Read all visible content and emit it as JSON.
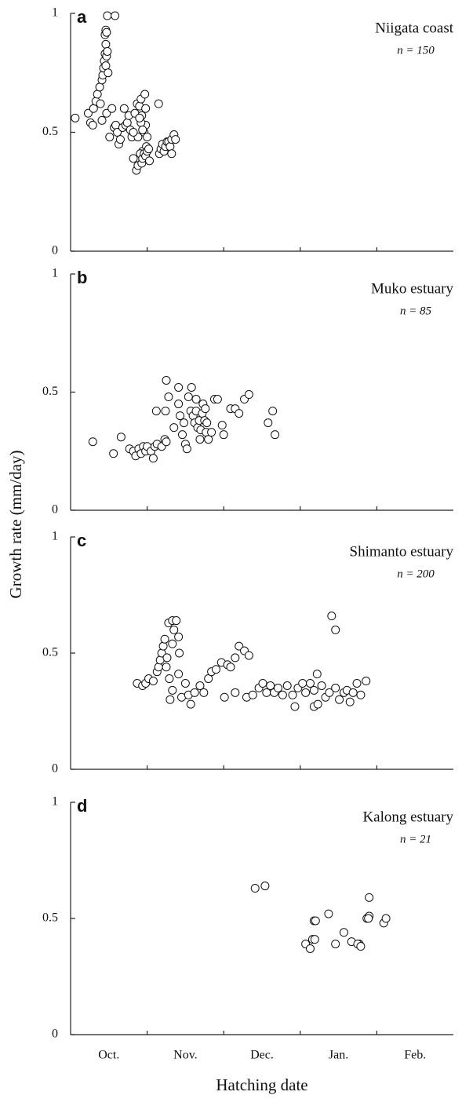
{
  "ylabel": "Growth rate (mm/day)",
  "xlabel": "Hatching date",
  "chart_data": [
    {
      "type": "scatter",
      "label": "a",
      "title": "Niigata coast",
      "annotation": "n = 150",
      "xlim": [
        0,
        5
      ],
      "xminor": [
        1,
        2,
        3,
        4
      ],
      "ylim": [
        0,
        1
      ],
      "yticks": [
        0,
        0.5,
        1
      ],
      "color": "#ffffff",
      "x": [
        0.06,
        0.23,
        0.26,
        0.29,
        0.3,
        0.33,
        0.35,
        0.38,
        0.39,
        0.41,
        0.42,
        0.43,
        0.44,
        0.45,
        0.45,
        0.46,
        0.47,
        0.46,
        0.47,
        0.48,
        0.46,
        0.48,
        0.58,
        0.49,
        0.41,
        0.47,
        0.51,
        0.54,
        0.57,
        0.59,
        0.61,
        0.63,
        0.65,
        0.68,
        0.7,
        0.72,
        0.74,
        0.76,
        0.78,
        0.8,
        0.82,
        0.84,
        0.87,
        0.88,
        0.9,
        0.92,
        0.93,
        0.94,
        0.96,
        0.97,
        0.98,
        0.99,
        0.82,
        0.86,
        0.88,
        0.91,
        0.93,
        0.94,
        0.96,
        0.98,
        1.0,
        1.0,
        1.02,
        1.03,
        1.15,
        1.16,
        1.18,
        1.2,
        1.22,
        1.24,
        1.26,
        1.28,
        1.3,
        1.32,
        1.35,
        1.37,
        1.32,
        0.92,
        0.9,
        0.94,
        0.98
      ],
      "values": [
        0.56,
        0.58,
        0.54,
        0.53,
        0.6,
        0.63,
        0.66,
        0.69,
        0.62,
        0.72,
        0.74,
        0.77,
        0.8,
        0.83,
        0.91,
        0.93,
        0.92,
        0.87,
        0.82,
        0.84,
        0.78,
        0.99,
        0.99,
        0.75,
        0.55,
        0.58,
        0.48,
        0.6,
        0.52,
        0.53,
        0.5,
        0.45,
        0.47,
        0.52,
        0.6,
        0.53,
        0.54,
        0.57,
        0.51,
        0.48,
        0.39,
        0.58,
        0.62,
        0.48,
        0.61,
        0.64,
        0.57,
        0.42,
        0.5,
        0.66,
        0.53,
        0.44,
        0.5,
        0.34,
        0.36,
        0.41,
        0.37,
        0.39,
        0.41,
        0.4,
        0.48,
        0.42,
        0.43,
        0.38,
        0.62,
        0.41,
        0.43,
        0.45,
        0.42,
        0.44,
        0.46,
        0.46,
        0.44,
        0.47,
        0.49,
        0.47,
        0.41,
        0.54,
        0.56,
        0.51,
        0.6
      ]
    },
    {
      "type": "scatter",
      "label": "b",
      "title": "Muko estuary",
      "annotation": "n = 85",
      "xlim": [
        0,
        5
      ],
      "xminor": [
        1,
        2,
        3,
        4
      ],
      "ylim": [
        0,
        1
      ],
      "yticks": [
        0,
        0.5,
        1
      ],
      "color": "#ffffff",
      "x": [
        0.29,
        0.56,
        0.66,
        0.77,
        0.82,
        0.85,
        0.89,
        0.92,
        0.95,
        0.98,
        1.0,
        1.05,
        1.08,
        1.1,
        1.13,
        1.19,
        1.23,
        1.25,
        1.12,
        1.24,
        1.25,
        1.28,
        1.35,
        1.41,
        1.41,
        1.43,
        1.46,
        1.48,
        1.5,
        1.52,
        1.54,
        1.57,
        1.58,
        1.6,
        1.62,
        1.64,
        1.66,
        1.68,
        1.7,
        1.72,
        1.73,
        1.75,
        1.76,
        1.77,
        1.78,
        1.8,
        1.84,
        1.88,
        1.92,
        1.98,
        2.0,
        2.09,
        2.15,
        2.2,
        2.27,
        2.33,
        2.58,
        2.64,
        2.67,
        1.64,
        1.69
      ],
      "values": [
        0.29,
        0.24,
        0.31,
        0.26,
        0.25,
        0.23,
        0.26,
        0.24,
        0.27,
        0.25,
        0.27,
        0.25,
        0.22,
        0.27,
        0.28,
        0.27,
        0.3,
        0.29,
        0.42,
        0.42,
        0.55,
        0.48,
        0.35,
        0.52,
        0.45,
        0.4,
        0.32,
        0.37,
        0.28,
        0.26,
        0.48,
        0.42,
        0.52,
        0.4,
        0.37,
        0.42,
        0.35,
        0.38,
        0.34,
        0.41,
        0.45,
        0.38,
        0.43,
        0.33,
        0.37,
        0.3,
        0.33,
        0.47,
        0.47,
        0.36,
        0.32,
        0.43,
        0.43,
        0.41,
        0.47,
        0.49,
        0.37,
        0.42,
        0.32,
        0.47,
        0.3
      ]
    },
    {
      "type": "scatter",
      "label": "c",
      "title": "Shimanto estuary",
      "annotation": "n = 200",
      "xlim": [
        0,
        5
      ],
      "xminor": [
        1,
        2,
        3,
        4
      ],
      "ylim": [
        0,
        1
      ],
      "yticks": [
        0,
        0.5,
        1
      ],
      "color": "#ffffff",
      "x": [
        0.87,
        0.94,
        0.98,
        1.02,
        1.08,
        1.13,
        1.15,
        1.17,
        1.19,
        1.21,
        1.23,
        1.26,
        1.28,
        1.33,
        1.38,
        1.35,
        1.41,
        1.42,
        1.33,
        1.29,
        1.25,
        1.3,
        1.33,
        1.41,
        1.45,
        1.5,
        1.54,
        1.57,
        1.62,
        1.69,
        1.74,
        1.8,
        1.84,
        1.9,
        1.97,
        2.01,
        2.05,
        2.09,
        2.15,
        2.2,
        2.27,
        2.33,
        2.15,
        2.3,
        2.38,
        2.46,
        2.51,
        2.56,
        2.61,
        2.66,
        2.71,
        2.77,
        2.83,
        2.9,
        2.93,
        2.97,
        3.03,
        3.07,
        3.13,
        3.18,
        3.22,
        3.28,
        3.33,
        3.38,
        3.41,
        3.46,
        3.46,
        3.51,
        3.57,
        3.61,
        3.65,
        3.69,
        3.74,
        3.79,
        3.86,
        3.18,
        3.23
      ],
      "values": [
        0.37,
        0.36,
        0.37,
        0.39,
        0.38,
        0.42,
        0.44,
        0.47,
        0.5,
        0.53,
        0.56,
        0.48,
        0.63,
        0.64,
        0.64,
        0.6,
        0.57,
        0.5,
        0.54,
        0.39,
        0.44,
        0.3,
        0.34,
        0.41,
        0.31,
        0.37,
        0.32,
        0.28,
        0.33,
        0.36,
        0.33,
        0.39,
        0.42,
        0.43,
        0.46,
        0.31,
        0.45,
        0.44,
        0.48,
        0.53,
        0.51,
        0.49,
        0.33,
        0.31,
        0.32,
        0.35,
        0.37,
        0.33,
        0.36,
        0.33,
        0.35,
        0.32,
        0.36,
        0.32,
        0.27,
        0.35,
        0.37,
        0.33,
        0.37,
        0.34,
        0.41,
        0.36,
        0.31,
        0.33,
        0.66,
        0.6,
        0.35,
        0.3,
        0.33,
        0.34,
        0.29,
        0.33,
        0.37,
        0.32,
        0.38,
        0.27,
        0.28
      ]
    },
    {
      "type": "scatter",
      "label": "d",
      "title": "Kalong estuary",
      "annotation": "n = 21",
      "xlim": [
        0,
        5
      ],
      "xminor": [
        1,
        2,
        3,
        4
      ],
      "ylim": [
        0,
        1
      ],
      "yticks": [
        0,
        0.5,
        1
      ],
      "color": "#ffffff",
      "xticks": [
        {
          "value": 0.5,
          "label": "Oct."
        },
        {
          "value": 1.5,
          "label": "Nov."
        },
        {
          "value": 2.5,
          "label": "Dec."
        },
        {
          "value": 3.5,
          "label": "Jan."
        },
        {
          "value": 4.5,
          "label": "Feb."
        }
      ],
      "x": [
        2.41,
        2.54,
        3.07,
        3.16,
        3.18,
        3.2,
        3.37,
        3.57,
        3.46,
        3.67,
        3.77,
        3.75,
        3.87,
        3.9,
        3.9,
        4.09,
        4.12,
        3.13,
        3.19,
        3.79,
        3.89
      ],
      "values": [
        0.63,
        0.64,
        0.39,
        0.41,
        0.49,
        0.49,
        0.52,
        0.44,
        0.39,
        0.4,
        0.39,
        0.39,
        0.5,
        0.51,
        0.59,
        0.48,
        0.5,
        0.37,
        0.41,
        0.38,
        0.5
      ]
    }
  ]
}
